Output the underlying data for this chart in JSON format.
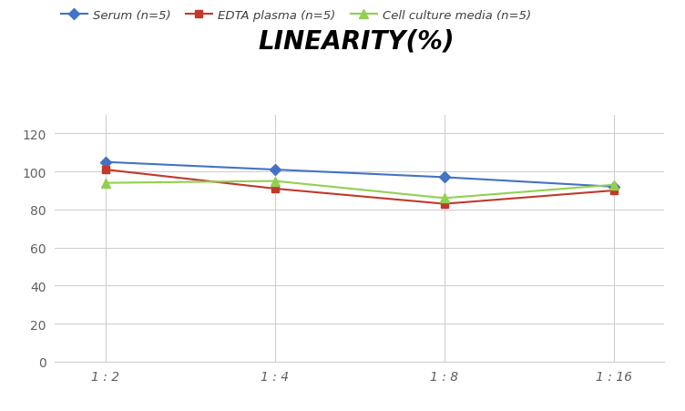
{
  "title": "LINEARITY(%)",
  "x_labels": [
    "1 : 2",
    "1 : 4",
    "1 : 8",
    "1 : 16"
  ],
  "x_positions": [
    0,
    1,
    2,
    3
  ],
  "series": [
    {
      "label": "Serum (n=5)",
      "values": [
        105,
        101,
        97,
        92
      ],
      "color": "#4472C4",
      "marker": "D",
      "marker_size": 6,
      "linewidth": 1.5
    },
    {
      "label": "EDTA plasma (n=5)",
      "values": [
        101,
        91,
        83,
        90
      ],
      "color": "#C0392B",
      "marker": "s",
      "marker_size": 6,
      "linewidth": 1.5
    },
    {
      "label": "Cell culture media (n=5)",
      "values": [
        94,
        95,
        86,
        93
      ],
      "color": "#92D050",
      "marker": "^",
      "marker_size": 7,
      "linewidth": 1.5
    }
  ],
  "ylim": [
    0,
    130
  ],
  "yticks": [
    0,
    20,
    40,
    60,
    80,
    100,
    120
  ],
  "grid_color": "#D0D0D0",
  "background_color": "#FFFFFF",
  "title_fontsize": 20,
  "title_fontstyle": "italic",
  "title_fontweight": "bold",
  "legend_fontsize": 9.5,
  "tick_fontsize": 10,
  "tick_color": "#606060"
}
